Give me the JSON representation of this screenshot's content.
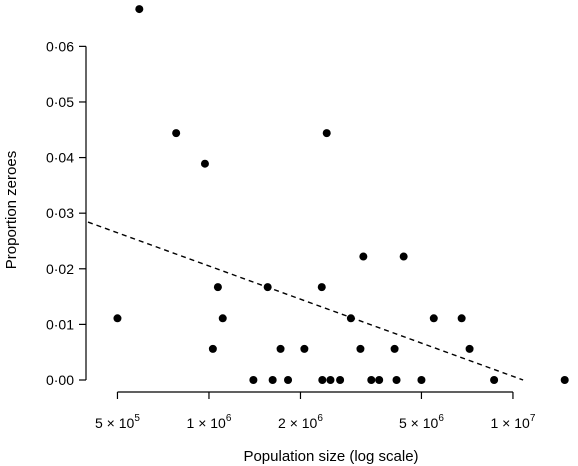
{
  "chart_data": {
    "type": "scatter",
    "title": "",
    "xlabel": "Population size (log scale)",
    "ylabel": "Proportion zeroes",
    "x_scale": "log",
    "xlim": [
      400000,
      16000000
    ],
    "ylim": [
      0,
      0.066
    ],
    "x_ticks": [
      {
        "value": 500000,
        "mantissa": "5",
        "exponent": "5"
      },
      {
        "value": 1000000,
        "mantissa": "1",
        "exponent": "6"
      },
      {
        "value": 2000000,
        "mantissa": "2",
        "exponent": "6"
      },
      {
        "value": 5000000,
        "mantissa": "5",
        "exponent": "6"
      },
      {
        "value": 10000000,
        "mantissa": "1",
        "exponent": "7"
      }
    ],
    "times_sign": "×",
    "base_label": "10",
    "y_ticks": [
      {
        "value": 0.0,
        "label": "0·00"
      },
      {
        "value": 0.01,
        "label": "0·01"
      },
      {
        "value": 0.02,
        "label": "0·02"
      },
      {
        "value": 0.03,
        "label": "0·03"
      },
      {
        "value": 0.04,
        "label": "0·04"
      },
      {
        "value": 0.05,
        "label": "0·05"
      },
      {
        "value": 0.06,
        "label": "0·06"
      }
    ],
    "grid": false,
    "points": [
      {
        "x": 500000,
        "y": 0.0111
      },
      {
        "x": 590000,
        "y": 0.0667
      },
      {
        "x": 780000,
        "y": 0.0444
      },
      {
        "x": 970000,
        "y": 0.0389
      },
      {
        "x": 1030000,
        "y": 0.0056
      },
      {
        "x": 1070000,
        "y": 0.0167
      },
      {
        "x": 1110000,
        "y": 0.0111
      },
      {
        "x": 1400000,
        "y": 0.0
      },
      {
        "x": 1560000,
        "y": 0.0167
      },
      {
        "x": 1620000,
        "y": 0.0
      },
      {
        "x": 1720000,
        "y": 0.0056
      },
      {
        "x": 1820000,
        "y": 0.0
      },
      {
        "x": 2060000,
        "y": 0.0056
      },
      {
        "x": 2350000,
        "y": 0.0167
      },
      {
        "x": 2360000,
        "y": 0.0
      },
      {
        "x": 2440000,
        "y": 0.0444
      },
      {
        "x": 2510000,
        "y": 0.0
      },
      {
        "x": 2700000,
        "y": 0.0
      },
      {
        "x": 2930000,
        "y": 0.0111
      },
      {
        "x": 3150000,
        "y": 0.0056
      },
      {
        "x": 3220000,
        "y": 0.0222
      },
      {
        "x": 3420000,
        "y": 0.0
      },
      {
        "x": 3630000,
        "y": 0.0
      },
      {
        "x": 4080000,
        "y": 0.0056
      },
      {
        "x": 4140000,
        "y": 0.0
      },
      {
        "x": 4370000,
        "y": 0.0222
      },
      {
        "x": 5000000,
        "y": 0.0
      },
      {
        "x": 5490000,
        "y": 0.0111
      },
      {
        "x": 6780000,
        "y": 0.0111
      },
      {
        "x": 7200000,
        "y": 0.0056
      },
      {
        "x": 8670000,
        "y": 0.0
      },
      {
        "x": 14800000,
        "y": 0.0
      }
    ],
    "trend_line": {
      "style": "dashed",
      "start": {
        "x": 400000,
        "y": 0.0284
      },
      "end": {
        "x": 10800000,
        "y": 0.0
      }
    }
  }
}
